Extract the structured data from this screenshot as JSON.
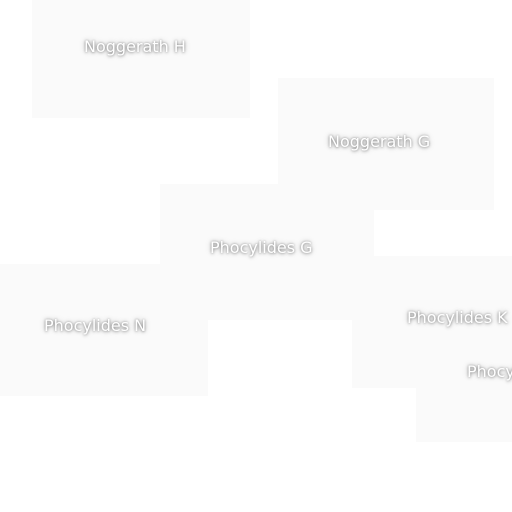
{
  "labels": [
    "Noggerath H",
    "Noggerath G",
    "Phocylides G",
    "Phocylides N",
    "Phocylides K",
    "Phocylides"
  ]
}
